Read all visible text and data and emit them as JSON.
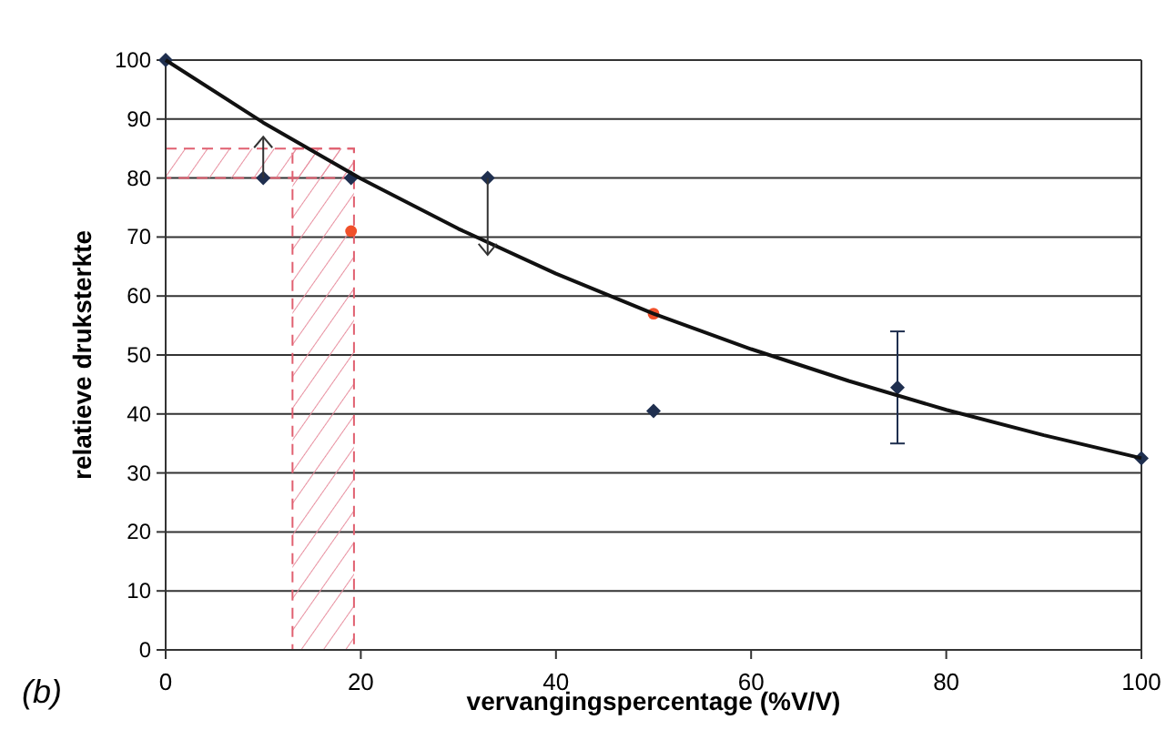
{
  "chart_data": {
    "type": "scatter",
    "xlabel": "vervangingspercentage (%V/V)",
    "ylabel": "relatieve druksterkte",
    "annotations": [
      "(b)"
    ],
    "xlim": [
      0,
      100
    ],
    "ylim": [
      0,
      100
    ],
    "xticks": [
      0,
      20,
      40,
      60,
      80,
      100
    ],
    "yticks": [
      0,
      10,
      20,
      30,
      40,
      50,
      60,
      70,
      80,
      90,
      100
    ],
    "grid": "y",
    "series": [
      {
        "color": "#1f2f4f",
        "marker": "diamond",
        "x": [
          0,
          10,
          19,
          33,
          50,
          75,
          100
        ],
        "values": [
          100,
          80,
          80,
          80,
          40.5,
          44.5,
          32.5
        ],
        "errors": [
          null,
          null,
          null,
          null,
          null,
          [
            35,
            54
          ],
          null
        ]
      },
      {
        "color": "#f0502a",
        "marker": "circle",
        "x": [
          19,
          50
        ],
        "values": [
          71,
          57
        ]
      },
      {
        "type": "line",
        "color": "#111111",
        "marker": "none",
        "line_style": "solid",
        "x": [
          0,
          10,
          20,
          30,
          40,
          50,
          60,
          70,
          80,
          90,
          100
        ],
        "values": [
          100,
          89.4,
          79.9,
          71.4,
          63.8,
          57,
          51,
          45.6,
          40.7,
          36.4,
          32.5
        ]
      }
    ],
    "bands": [
      {
        "axis": "x",
        "from": 13,
        "to": 19.3,
        "color": "#e06070"
      },
      {
        "axis": "y",
        "from": 80,
        "to": 85,
        "color": "#e06070"
      }
    ]
  }
}
